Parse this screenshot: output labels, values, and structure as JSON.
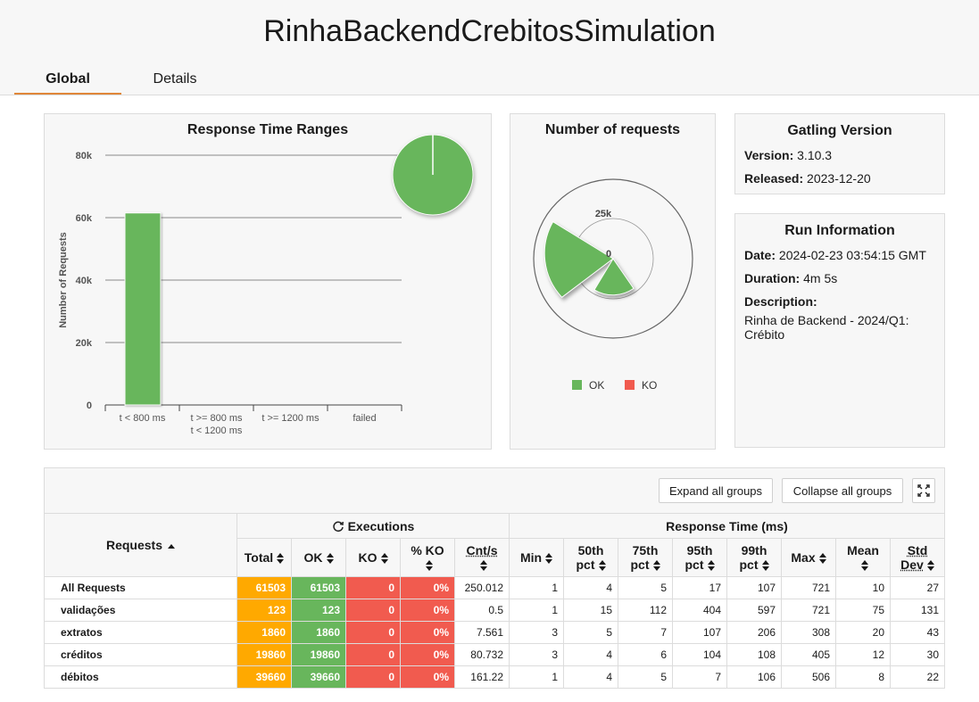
{
  "title": "RinhaBackendCrebitosSimulation",
  "tabs": [
    {
      "label": "Global"
    },
    {
      "label": "Details"
    }
  ],
  "colors": {
    "ok": "#68b65c",
    "ko": "#f15b4f",
    "total": "#ffa900",
    "accent": "#e0873a"
  },
  "response_time_ranges": {
    "title": "Response Time Ranges",
    "chart_data": {
      "type": "bar",
      "title": "Response Time Ranges",
      "ylabel": "Number of Requests",
      "ylim": [
        0,
        80000
      ],
      "yticks": [
        "0",
        "20k",
        "40k",
        "60k",
        "80k"
      ],
      "categories": [
        [
          "t < 800 ms"
        ],
        [
          "t >= 800 ms",
          "t < 1200 ms"
        ],
        [
          "t >= 1200 ms"
        ],
        [
          "failed"
        ]
      ],
      "values": [
        61503,
        0,
        0,
        0
      ]
    }
  },
  "number_of_requests": {
    "title": "Number of requests",
    "tick_label_25k": "25k",
    "tick_label_0": "0",
    "legend": [
      {
        "label": "OK"
      },
      {
        "label": "KO"
      }
    ]
  },
  "gatling": {
    "title": "Gatling Version",
    "version_label": "Version:",
    "version": "3.10.3",
    "released_label": "Released:",
    "released": "2023-12-20"
  },
  "run": {
    "title": "Run Information",
    "date_label": "Date:",
    "date": "2024-02-23 03:54:15 GMT",
    "duration_label": "Duration:",
    "duration": "4m 5s",
    "description_label": "Description:",
    "description_line1": "Rinha de Backend - 2024/Q1:",
    "description_line2": "Crébito"
  },
  "toolbar": {
    "expand_label": "Expand all groups",
    "collapse_label": "Collapse all groups"
  },
  "table": {
    "requests_header": "Requests",
    "executions_header": "Executions",
    "response_time_header": "Response Time (ms)",
    "col_total": "Total",
    "col_ok": "OK",
    "col_ko": "KO",
    "col_pct_ko": "% KO",
    "col_cnt": "Cnt/s",
    "col_min": "Min",
    "col_50_a": "50th",
    "col_50_b": "pct",
    "col_75_a": "75th",
    "col_75_b": "pct",
    "col_95_a": "95th",
    "col_95_b": "pct",
    "col_99_a": "99th",
    "col_99_b": "pct",
    "col_max": "Max",
    "col_mean": "Mean",
    "col_std_a": "Std",
    "col_std_b": "Dev",
    "rows": [
      {
        "name": "All Requests",
        "total": "61503",
        "ok": "61503",
        "ko": "0",
        "pct_ko": "0%",
        "cnt": "250.012",
        "min": "1",
        "p50": "4",
        "p75": "5",
        "p95": "17",
        "p99": "107",
        "max": "721",
        "mean": "10",
        "std": "27"
      },
      {
        "name": "validações",
        "total": "123",
        "ok": "123",
        "ko": "0",
        "pct_ko": "0%",
        "cnt": "0.5",
        "min": "1",
        "p50": "15",
        "p75": "112",
        "p95": "404",
        "p99": "597",
        "max": "721",
        "mean": "75",
        "std": "131"
      },
      {
        "name": "extratos",
        "total": "1860",
        "ok": "1860",
        "ko": "0",
        "pct_ko": "0%",
        "cnt": "7.561",
        "min": "3",
        "p50": "5",
        "p75": "7",
        "p95": "107",
        "p99": "206",
        "max": "308",
        "mean": "20",
        "std": "43"
      },
      {
        "name": "créditos",
        "total": "19860",
        "ok": "19860",
        "ko": "0",
        "pct_ko": "0%",
        "cnt": "80.732",
        "min": "3",
        "p50": "4",
        "p75": "6",
        "p95": "104",
        "p99": "108",
        "max": "405",
        "mean": "12",
        "std": "30"
      },
      {
        "name": "débitos",
        "total": "39660",
        "ok": "39660",
        "ko": "0",
        "pct_ko": "0%",
        "cnt": "161.22",
        "min": "1",
        "p50": "4",
        "p75": "5",
        "p95": "7",
        "p99": "106",
        "max": "506",
        "mean": "8",
        "std": "22"
      }
    ]
  }
}
